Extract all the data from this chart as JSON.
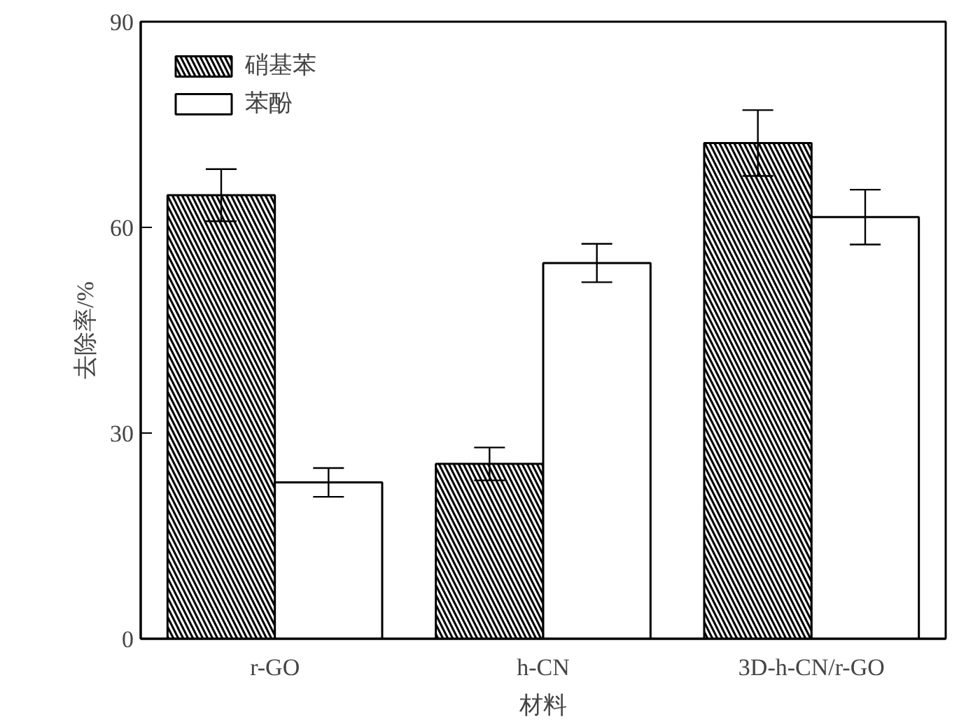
{
  "chart_data": {
    "type": "bar",
    "xlabel": "材料",
    "ylabel": "去除率/%",
    "categories": [
      "r-GO",
      "h-CN",
      "3D-h-CN/r-GO"
    ],
    "series": [
      {
        "name": "硝基苯",
        "color": "#000000",
        "values": [
          64.7,
          25.5,
          72.3
        ],
        "errors": [
          3.8,
          2.4,
          4.8
        ]
      },
      {
        "name": "苯酚",
        "color": "#ffffff",
        "values": [
          22.8,
          54.8,
          61.5
        ],
        "errors": [
          2.1,
          2.8,
          4.0
        ]
      }
    ],
    "ylim": [
      0,
      90
    ],
    "yticks": [
      0,
      30,
      60,
      90
    ],
    "legend": "top left",
    "grid": false
  }
}
